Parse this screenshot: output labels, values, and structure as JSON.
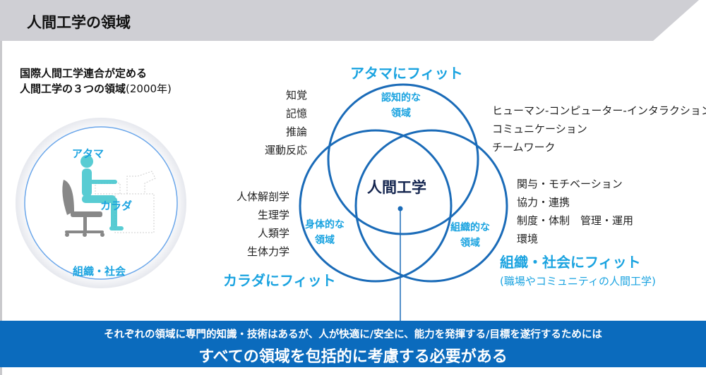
{
  "header": {
    "title": "人間工学の領域"
  },
  "subtitle": {
    "line1": "国際人間工学連合が定める",
    "line2": "人間工学の３つの領域",
    "year": "(2000年)"
  },
  "illustration": {
    "head_label": "アタマ",
    "body_label": "カラダ",
    "org_label": "組織・社会"
  },
  "venn": {
    "center_label": "人間工学",
    "cognitive": {
      "fit": "アタマにフィット",
      "area": [
        "認知的な",
        "領域"
      ],
      "items": [
        "知覚",
        "記憶",
        "推論",
        "運動反応"
      ]
    },
    "physical": {
      "fit": "カラダにフィット",
      "area": [
        "身体的な",
        "領域"
      ],
      "items": [
        "人体解剖学",
        "生理学",
        "人類学",
        "生体力学"
      ]
    },
    "organizational": {
      "fit": "組織・社会にフィット",
      "fit_note": "(職場やコミュニティの人間工学)",
      "area": [
        "組織的な",
        "領域"
      ],
      "items_top": [
        "ヒューマン-コンピューター-インタラクション",
        "コミュニケーション",
        "チームワーク"
      ],
      "items": [
        "関与・モチベーション",
        "協力・連携",
        "制度・体制　管理・運用",
        "環境"
      ]
    }
  },
  "banner": {
    "line1": "それぞれの領域に専門的知識・技術はあるが、人が快適に/安全に、能力を発揮する/目標を遂行するためには",
    "line2": "すべての領域を包括的に考慮する必要がある"
  },
  "colors": {
    "header_bg": "#cfcfd4",
    "circle": "#1a6bb8",
    "accent": "#1aa3e0",
    "banner": "#0b6bbd",
    "center_text": "#14254f"
  }
}
